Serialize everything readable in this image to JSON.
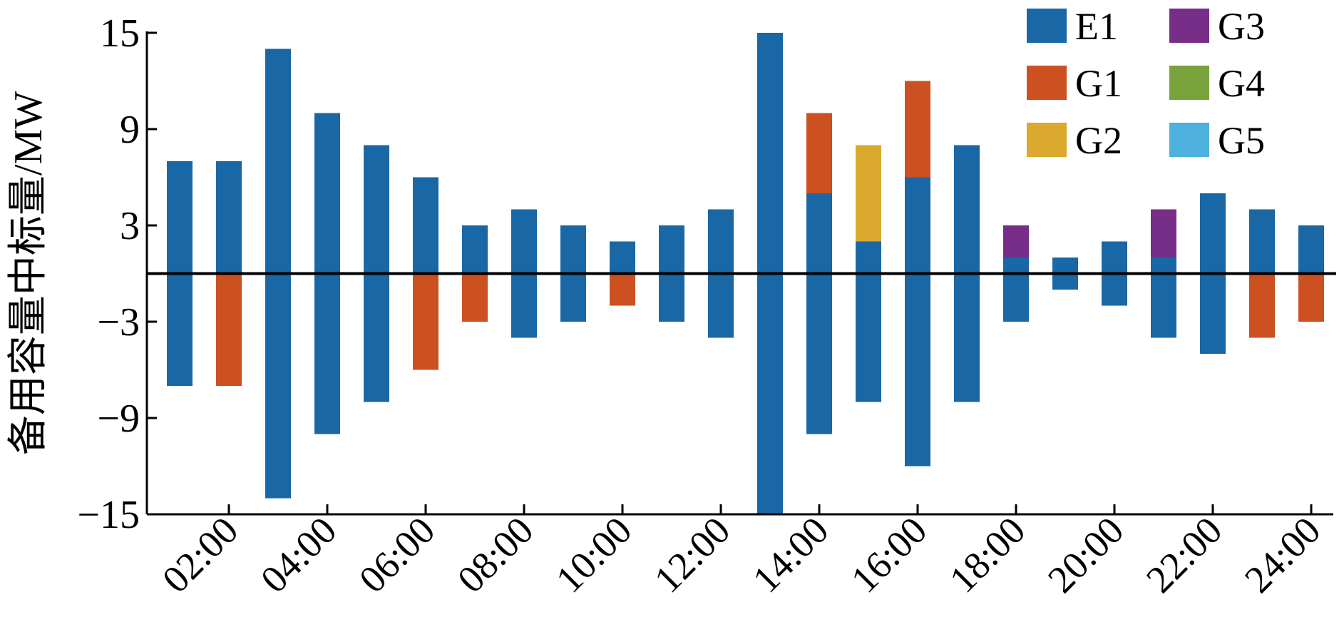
{
  "chart_data": {
    "type": "bar",
    "stacked": true,
    "y_label": "备用容量中标量/MW",
    "categories": [
      null,
      "02:00",
      null,
      "04:00",
      null,
      "06:00",
      null,
      "08:00",
      null,
      "10:00",
      null,
      "12:00",
      null,
      "14:00",
      null,
      "16:00",
      null,
      "18:00",
      null,
      "20:00",
      null,
      "22:00",
      null,
      "24:00"
    ],
    "ylim": [
      -15,
      15
    ],
    "yticks": [
      {
        "value": -15,
        "label": "−15"
      },
      {
        "value": -9,
        "label": "−9"
      },
      {
        "value": -3,
        "label": "−3"
      },
      3,
      9,
      15
    ],
    "grid": false,
    "legend": "top-right",
    "series": [
      {
        "name": "E1",
        "color": "#1a67a6",
        "up": [
          7,
          7,
          14,
          10,
          8,
          6,
          3,
          4,
          3,
          2,
          3,
          4,
          15,
          5,
          2,
          6,
          8,
          1,
          1,
          2,
          1,
          5,
          4,
          3
        ],
        "down": [
          -7,
          0,
          -14,
          -10,
          -8,
          0,
          0,
          -4,
          -3,
          0,
          -3,
          -4,
          -15,
          -10,
          -8,
          -12,
          -8,
          -3,
          -1,
          -2,
          -4,
          -5,
          0,
          0
        ]
      },
      {
        "name": "G1",
        "color": "#cc5020",
        "up": [
          0,
          0,
          0,
          0,
          0,
          0,
          0,
          0,
          0,
          0,
          0,
          0,
          0,
          5,
          0,
          6,
          0,
          0,
          0,
          0,
          0,
          0,
          0,
          0
        ],
        "down": [
          0,
          -7,
          0,
          0,
          0,
          -6,
          -3,
          0,
          0,
          -2,
          0,
          0,
          0,
          0,
          0,
          0,
          0,
          0,
          0,
          0,
          0,
          0,
          -4,
          -3
        ]
      },
      {
        "name": "G2",
        "color": "#dba92d",
        "up": [
          0,
          0,
          0,
          0,
          0,
          0,
          0,
          0,
          0,
          0,
          0,
          0,
          0,
          0,
          6,
          0,
          0,
          0,
          0,
          0,
          0,
          0,
          0,
          0
        ],
        "down": [
          0,
          0,
          0,
          0,
          0,
          0,
          0,
          0,
          0,
          0,
          0,
          0,
          0,
          0,
          0,
          0,
          0,
          0,
          0,
          0,
          0,
          0,
          0,
          0
        ]
      },
      {
        "name": "G3",
        "color": "#772e88",
        "up": [
          0,
          0,
          0,
          0,
          0,
          0,
          0,
          0,
          0,
          0,
          0,
          0,
          0,
          0,
          0,
          0,
          0,
          2,
          0,
          0,
          3,
          0,
          0,
          0
        ],
        "down": [
          0,
          0,
          0,
          0,
          0,
          0,
          0,
          0,
          0,
          0,
          0,
          0,
          0,
          0,
          0,
          0,
          0,
          0,
          0,
          0,
          0,
          0,
          0,
          0
        ]
      },
      {
        "name": "G4",
        "color": "#77a33a",
        "up": [
          0,
          0,
          0,
          0,
          0,
          0,
          0,
          0,
          0,
          0,
          0,
          0,
          0,
          0,
          0,
          0,
          0,
          0,
          0,
          0,
          0,
          0,
          0,
          0
        ],
        "down": [
          0,
          0,
          0,
          0,
          0,
          0,
          0,
          0,
          0,
          0,
          0,
          0,
          0,
          0,
          0,
          0,
          0,
          0,
          0,
          0,
          0,
          0,
          0,
          0
        ]
      },
      {
        "name": "G5",
        "color": "#4db0df",
        "up": [
          0,
          0,
          0,
          0,
          0,
          0,
          0,
          0,
          0,
          0,
          0,
          0,
          0,
          0,
          0,
          0,
          0,
          0,
          0,
          0,
          0,
          0,
          0,
          0
        ],
        "down": [
          0,
          0,
          0,
          0,
          0,
          0,
          0,
          0,
          0,
          0,
          0,
          0,
          0,
          0,
          0,
          0,
          0,
          0,
          0,
          0,
          0,
          0,
          0,
          0
        ]
      }
    ]
  }
}
